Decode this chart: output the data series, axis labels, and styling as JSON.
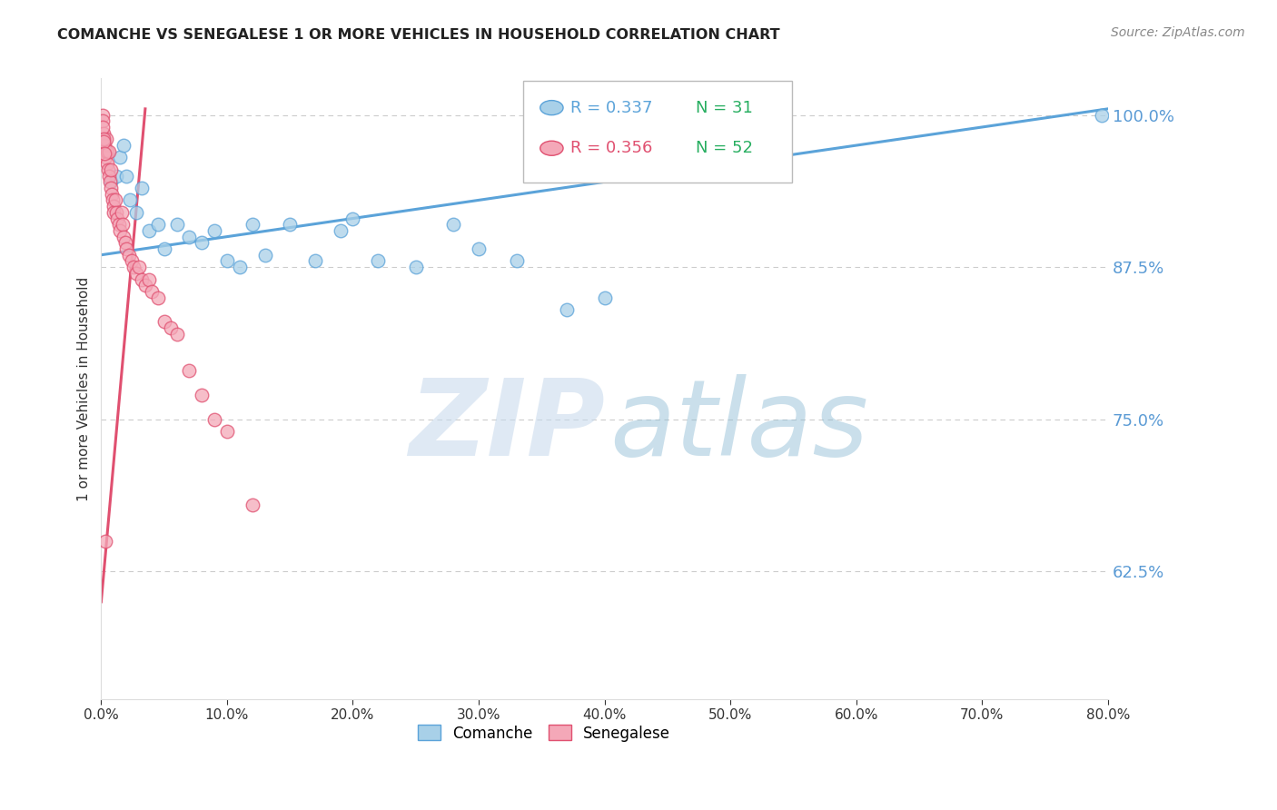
{
  "title": "COMANCHE VS SENEGALESE 1 OR MORE VEHICLES IN HOUSEHOLD CORRELATION CHART",
  "source_text": "Source: ZipAtlas.com",
  "ylabel": "1 or more Vehicles in Household",
  "watermark_zip": "ZIP",
  "watermark_atlas": "atlas",
  "xlim": [
    0.0,
    80.0
  ],
  "ylim": [
    52.0,
    103.0
  ],
  "yticks": [
    62.5,
    75.0,
    87.5,
    100.0
  ],
  "xticks": [
    0.0,
    10.0,
    20.0,
    30.0,
    40.0,
    50.0,
    60.0,
    70.0,
    80.0
  ],
  "comanche_R": 0.337,
  "comanche_N": 31,
  "senegalese_R": 0.356,
  "senegalese_N": 52,
  "comanche_color": "#A8D0E8",
  "senegalese_color": "#F4A8B8",
  "comanche_line_color": "#5BA3D9",
  "senegalese_line_color": "#E05070",
  "axis_color": "#5B9BD5",
  "grid_color": "#CCCCCC",
  "title_color": "#222222",
  "source_color": "#888888",
  "legend_box_color": "#DDDDDD",
  "comanche_x": [
    0.8,
    1.2,
    1.5,
    1.8,
    2.0,
    2.3,
    2.8,
    3.2,
    3.8,
    4.5,
    5.0,
    6.0,
    7.0,
    8.0,
    9.0,
    10.0,
    11.0,
    12.0,
    13.0,
    15.0,
    17.0,
    19.0,
    20.0,
    22.0,
    25.0,
    28.0,
    30.0,
    33.0,
    37.0,
    40.0,
    79.5
  ],
  "comanche_y": [
    94.5,
    95.0,
    96.5,
    97.5,
    95.0,
    93.0,
    92.0,
    94.0,
    90.5,
    91.0,
    89.0,
    91.0,
    90.0,
    89.5,
    90.5,
    88.0,
    87.5,
    91.0,
    88.5,
    91.0,
    88.0,
    90.5,
    91.5,
    88.0,
    87.5,
    91.0,
    89.0,
    88.0,
    84.0,
    85.0,
    100.0
  ],
  "senegalese_x": [
    0.1,
    0.15,
    0.2,
    0.25,
    0.3,
    0.35,
    0.4,
    0.45,
    0.5,
    0.55,
    0.6,
    0.65,
    0.7,
    0.75,
    0.8,
    0.85,
    0.9,
    0.95,
    1.0,
    1.1,
    1.2,
    1.3,
    1.4,
    1.5,
    1.6,
    1.7,
    1.8,
    1.9,
    2.0,
    2.2,
    2.4,
    2.6,
    2.8,
    3.0,
    3.2,
    3.5,
    3.8,
    4.0,
    4.5,
    5.0,
    5.5,
    6.0,
    7.0,
    8.0,
    9.0,
    10.0,
    12.0,
    0.12,
    0.18,
    0.22,
    0.28,
    0.32
  ],
  "senegalese_y": [
    100.0,
    99.5,
    98.5,
    97.5,
    97.0,
    96.5,
    98.0,
    97.0,
    96.0,
    95.5,
    97.0,
    95.0,
    94.5,
    94.0,
    95.5,
    93.5,
    93.0,
    92.5,
    92.0,
    93.0,
    92.0,
    91.5,
    91.0,
    90.5,
    92.0,
    91.0,
    90.0,
    89.5,
    89.0,
    88.5,
    88.0,
    87.5,
    87.0,
    87.5,
    86.5,
    86.0,
    86.5,
    85.5,
    85.0,
    83.0,
    82.5,
    82.0,
    79.0,
    77.0,
    75.0,
    74.0,
    68.0,
    99.0,
    98.0,
    97.8,
    96.8,
    65.0
  ]
}
